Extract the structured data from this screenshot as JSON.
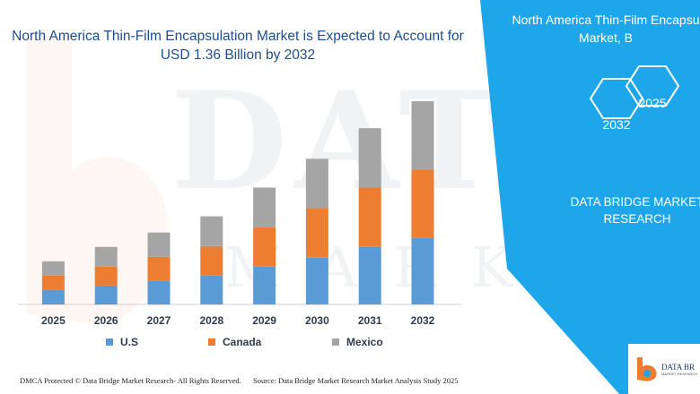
{
  "title": "North America Thin-Film Encapsulation Market is Expected to Account for USD 1.36 Billion by 2032",
  "title_line1": "North America Thin-Film Encapsulation Market is Expected to Account for",
  "title_line2": "USD 1.36 Billion by 2032",
  "colors": {
    "us": "#5b9bd5",
    "canada": "#ed7d31",
    "mexico": "#a5a5a5",
    "panel": "#1ea6ea",
    "title": "#1f4e8c"
  },
  "chart_data": {
    "type": "bar",
    "stacked": true,
    "categories": [
      "2025",
      "2026",
      "2027",
      "2028",
      "2029",
      "2030",
      "2031",
      "2032"
    ],
    "series": [
      {
        "name": "U.S",
        "values": [
          16,
          21,
          26,
          32,
          42,
          52,
          64,
          74
        ]
      },
      {
        "name": "Canada",
        "values": [
          16,
          21,
          27,
          33,
          44,
          55,
          66,
          76
        ]
      },
      {
        "name": "Mexico",
        "values": [
          16,
          22,
          27,
          33,
          44,
          55,
          66,
          76
        ]
      }
    ],
    "ylim": [
      0,
      235
    ],
    "grid": false,
    "legend_position": "bottom"
  },
  "legend": {
    "us": "U.S",
    "canada": "Canada",
    "mexico": "Mexico"
  },
  "watermark": {
    "main": "DATA BRIDGE",
    "sub": "MARKET RESEARCH"
  },
  "footer": {
    "left": "DMCA Protected © Data Bridge Market Research- All Rights Reserved.",
    "right": "Source: Data Bridge Market Research Market Analysis Study 2025"
  },
  "panel": {
    "title_line1": "North America Thin-Film Encapsu",
    "title_line2": "Market, B",
    "hex_2025": "2025",
    "hex_2032": "2032",
    "brand_line1": "DATA BRIDGE MARKET",
    "brand_line2": "RESEARCH"
  },
  "logo": {
    "text": "DATA BR",
    "sub": "MARKET RESEARCH"
  }
}
